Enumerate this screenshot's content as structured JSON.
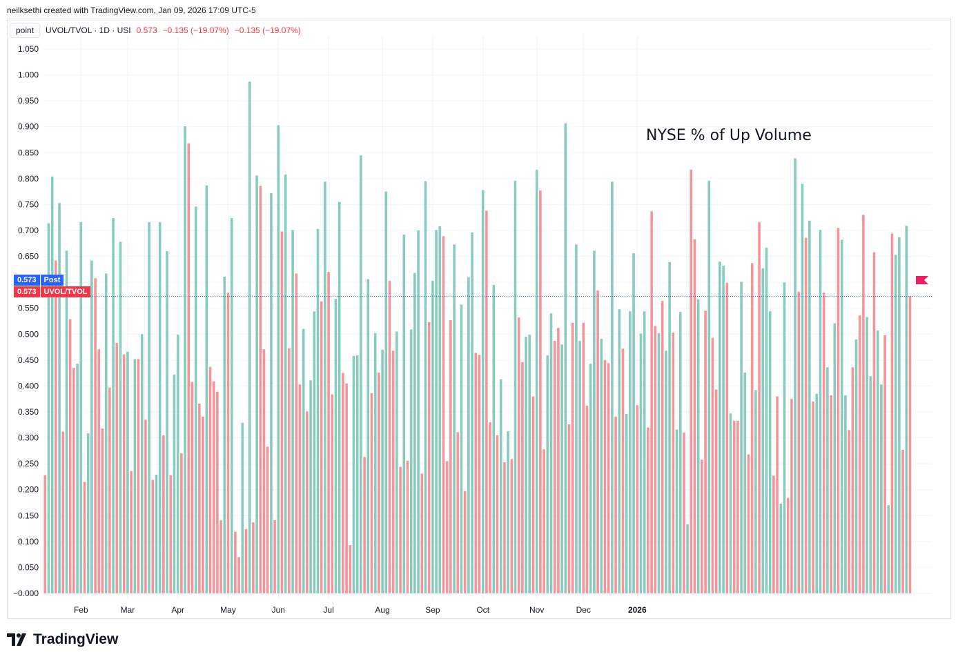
{
  "header": {
    "credit": "neilksethi created with TradingView.com, Jan 09, 2026 17:09 UTC-5"
  },
  "legend": {
    "point_label": "point",
    "symbol": "UVOL/TVOL · 1D · USI",
    "last": "0.573",
    "change": "−0.135 (−19.07%)",
    "change2": "−0.135 (−19.07%)"
  },
  "annotation": "NYSE % of Up Volume",
  "price_tags": {
    "post_value": "0.573",
    "post_label": "Post",
    "main_value": "0.573",
    "main_label": "UVOL/TVOL"
  },
  "brand": "TradingView",
  "colors": {
    "up": "#89cbbe",
    "down": "#f4959a",
    "last_line": "#2962ff",
    "flag": "#e91e63"
  },
  "chart_data": {
    "type": "bar",
    "title": "",
    "ylim": [
      -0.012,
      1.062
    ],
    "y_ticks": [
      "1.050",
      "1.000",
      "0.950",
      "0.900",
      "0.850",
      "0.800",
      "0.750",
      "0.700",
      "0.650",
      "0.600",
      "0.550",
      "0.500",
      "0.450",
      "0.400",
      "0.350",
      "0.300",
      "0.250",
      "0.200",
      "0.150",
      "0.100",
      "0.050",
      "−0.000"
    ],
    "y_tick_values": [
      1.05,
      1.0,
      0.95,
      0.9,
      0.85,
      0.8,
      0.75,
      0.7,
      0.65,
      0.6,
      0.55,
      0.5,
      0.45,
      0.4,
      0.35,
      0.3,
      0.25,
      0.2,
      0.15,
      0.1,
      0.05,
      0.0
    ],
    "x_labels": [
      "Feb",
      "Mar",
      "Apr",
      "May",
      "Jun",
      "Jul",
      "Aug",
      "Sep",
      "Oct",
      "Nov",
      "Dec",
      "2026"
    ],
    "x_label_bar_index": [
      10,
      23,
      37,
      51,
      65,
      79,
      94,
      108,
      122,
      137,
      150,
      165
    ],
    "last_value": 0.573,
    "values": [
      0.228,
      0.714,
      0.804,
      0.642,
      0.753,
      0.312,
      0.661,
      0.529,
      0.435,
      0.443,
      0.716,
      0.215,
      0.309,
      0.642,
      0.608,
      0.471,
      0.318,
      0.617,
      0.397,
      0.724,
      0.483,
      0.678,
      0.461,
      0.466,
      0.236,
      0.452,
      0.452,
      0.5,
      0.335,
      0.716,
      0.219,
      0.229,
      0.716,
      0.305,
      0.66,
      0.228,
      0.422,
      0.499,
      0.27,
      0.901,
      0.868,
      0.408,
      0.746,
      0.366,
      0.341,
      0.787,
      0.437,
      0.409,
      0.389,
      0.141,
      0.611,
      0.58,
      0.724,
      0.119,
      0.07,
      0.329,
      0.124,
      0.987,
      0.137,
      0.806,
      0.786,
      0.471,
      0.283,
      0.772,
      0.141,
      0.903,
      0.698,
      0.808,
      0.473,
      0.701,
      0.617,
      0.403,
      0.51,
      0.351,
      0.411,
      0.544,
      0.703,
      0.563,
      0.794,
      0.62,
      0.384,
      0.568,
      0.755,
      0.425,
      0.405,
      0.093,
      0.458,
      0.459,
      0.845,
      0.263,
      0.606,
      0.386,
      0.502,
      0.426,
      0.47,
      0.775,
      0.603,
      0.468,
      0.505,
      0.244,
      0.692,
      0.256,
      0.509,
      0.618,
      0.7,
      0.231,
      0.795,
      0.523,
      0.603,
      0.701,
      0.708,
      0.689,
      0.255,
      0.527,
      0.673,
      0.311,
      0.557,
      0.197,
      0.61,
      0.696,
      0.464,
      0.46,
      0.778,
      0.738,
      0.33,
      0.595,
      0.305,
      0.413,
      0.253,
      0.313,
      0.259,
      0.796,
      0.532,
      0.446,
      0.495,
      0.499,
      0.38,
      0.817,
      0.777,
      0.278,
      0.459,
      0.54,
      0.487,
      0.512,
      0.48,
      0.907,
      0.326,
      0.522,
      0.673,
      0.487,
      0.522,
      0.362,
      0.443,
      0.661,
      0.584,
      0.491,
      0.45,
      0.444,
      0.794,
      0.341,
      0.548,
      0.472,
      0.346,
      0.544,
      0.656,
      0.363,
      0.501,
      0.544,
      0.32,
      0.737,
      0.516,
      0.502,
      0.564,
      0.468,
      0.639,
      0.503,
      0.316,
      0.543,
      0.31,
      0.133,
      0.817,
      0.683,
      0.567,
      0.258,
      0.545,
      0.796,
      0.493,
      0.393,
      0.64,
      0.632,
      0.599,
      0.347,
      0.333,
      0.333,
      0.601,
      0.426,
      0.268,
      0.637,
      0.392,
      0.716,
      0.627,
      0.667,
      0.544,
      0.227,
      0.38,
      0.173,
      0.6,
      0.184,
      0.375,
      0.839,
      0.582,
      0.79,
      0.686,
      0.719,
      0.37,
      0.385,
      0.701,
      0.58,
      0.436,
      0.382,
      0.521,
      0.705,
      0.682,
      0.382,
      0.315,
      0.436,
      0.49,
      0.536,
      0.73,
      0.533,
      0.419,
      0.658,
      0.507,
      0.403,
      0.498,
      0.17,
      0.694,
      0.653,
      0.687,
      0.277,
      0.709,
      0.573
    ],
    "directions": [
      "d",
      "u",
      "u",
      "d",
      "u",
      "d",
      "u",
      "d",
      "d",
      "u",
      "u",
      "d",
      "u",
      "u",
      "d",
      "d",
      "d",
      "u",
      "d",
      "u",
      "d",
      "u",
      "d",
      "u",
      "d",
      "u",
      "d",
      "u",
      "d",
      "u",
      "d",
      "u",
      "u",
      "d",
      "u",
      "d",
      "u",
      "u",
      "d",
      "u",
      "d",
      "d",
      "u",
      "d",
      "d",
      "u",
      "d",
      "d",
      "d",
      "d",
      "u",
      "d",
      "u",
      "d",
      "d",
      "u",
      "d",
      "u",
      "d",
      "u",
      "d",
      "d",
      "d",
      "u",
      "d",
      "u",
      "d",
      "u",
      "d",
      "u",
      "d",
      "d",
      "u",
      "d",
      "u",
      "u",
      "u",
      "d",
      "u",
      "d",
      "d",
      "u",
      "u",
      "d",
      "d",
      "d",
      "u",
      "u",
      "u",
      "d",
      "u",
      "d",
      "u",
      "d",
      "u",
      "u",
      "d",
      "d",
      "u",
      "d",
      "u",
      "d",
      "u",
      "u",
      "u",
      "d",
      "u",
      "d",
      "u",
      "u",
      "u",
      "d",
      "d",
      "d",
      "u",
      "d",
      "u",
      "d",
      "u",
      "u",
      "d",
      "d",
      "u",
      "d",
      "d",
      "u",
      "d",
      "u",
      "d",
      "u",
      "d",
      "u",
      "d",
      "d",
      "u",
      "u",
      "d",
      "u",
      "d",
      "d",
      "u",
      "u",
      "d",
      "d",
      "u",
      "u",
      "d",
      "d",
      "u",
      "u",
      "d",
      "d",
      "u",
      "u",
      "d",
      "u",
      "d",
      "d",
      "u",
      "d",
      "u",
      "d",
      "u",
      "u",
      "u",
      "d",
      "u",
      "u",
      "d",
      "d",
      "d",
      "u",
      "d",
      "u",
      "u",
      "d",
      "u",
      "u",
      "d",
      "u",
      "d",
      "d",
      "u",
      "d",
      "d",
      "u",
      "d",
      "d",
      "u",
      "u",
      "d",
      "u",
      "d",
      "d",
      "u",
      "u",
      "d",
      "d",
      "u",
      "d",
      "u",
      "u",
      "u",
      "d",
      "d",
      "u",
      "u",
      "d",
      "d",
      "u",
      "d",
      "u",
      "d",
      "u",
      "d",
      "u",
      "u",
      "d",
      "u",
      "d",
      "u",
      "d",
      "u",
      "u",
      "d",
      "d",
      "u",
      "d",
      "d",
      "u",
      "u",
      "d",
      "u",
      "u",
      "d",
      "u",
      "d",
      "u",
      "u",
      "d",
      "u",
      "d",
      "u",
      "u",
      "d"
    ]
  }
}
